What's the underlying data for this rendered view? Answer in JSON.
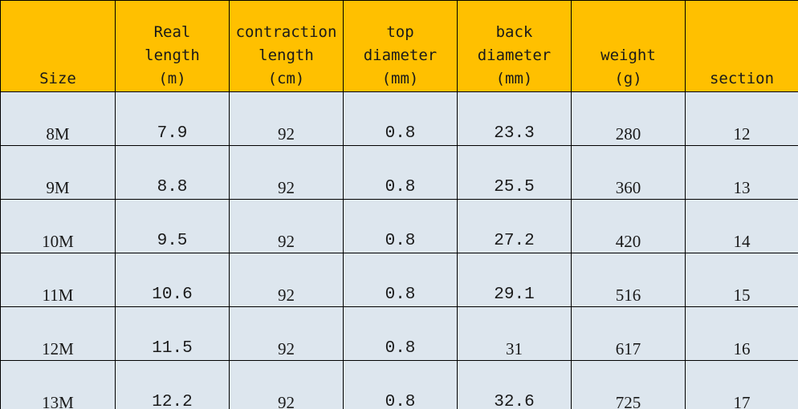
{
  "table": {
    "headers": [
      [
        "Size"
      ],
      [
        "Real",
        "length",
        "(m)"
      ],
      [
        "contraction",
        "length",
        "(cm)"
      ],
      [
        "top",
        "diameter",
        "(mm)"
      ],
      [
        "back",
        "diameter",
        "(mm)"
      ],
      [
        "weight",
        "(g)"
      ],
      [
        "section"
      ]
    ],
    "rows": [
      [
        "8M",
        "7.9",
        "92",
        "0.8",
        "23.3",
        "280",
        "12"
      ],
      [
        "9M",
        "8.8",
        "92",
        "0.8",
        "25.5",
        "360",
        "13"
      ],
      [
        "10M",
        "9.5",
        "92",
        "0.8",
        "27.2",
        "420",
        "14"
      ],
      [
        "11M",
        "10.6",
        "92",
        "0.8",
        "29.1",
        "516",
        "15"
      ],
      [
        "12M",
        "11.5",
        "92",
        "0.8",
        "31",
        "617",
        "16"
      ],
      [
        "13M",
        "12.2",
        "92",
        "0.8",
        "32.6",
        "725",
        "17"
      ]
    ]
  },
  "colors": {
    "header_bg": "#ffc000",
    "row_bg": "#dde6ee",
    "border": "#000000"
  }
}
